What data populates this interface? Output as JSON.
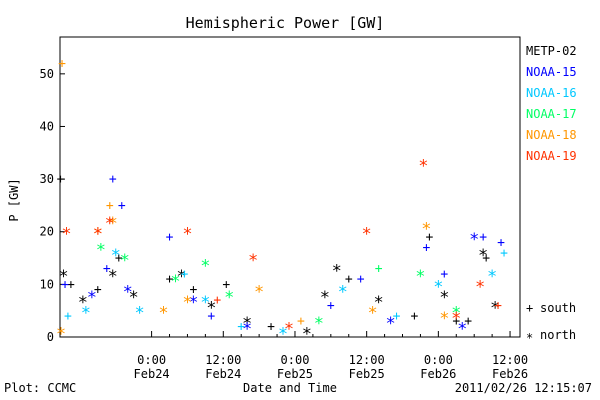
{
  "chart_data": {
    "type": "scatter",
    "title": "Hemispheric Power [GW]",
    "ylabel": "P [GW]",
    "xlabel": "Date and Time",
    "ylim": [
      0,
      57
    ],
    "yticks": [
      0,
      10,
      20,
      30,
      40,
      50
    ],
    "xlim": [
      "2011-02-23T08:40",
      "2011-02-26T13:40"
    ],
    "xticks": [
      {
        "t": "2011-02-24T00:00",
        "l1": "0:00",
        "l2": "Feb24"
      },
      {
        "t": "2011-02-24T12:00",
        "l1": "12:00",
        "l2": "Feb24"
      },
      {
        "t": "2011-02-25T00:00",
        "l1": "0:00",
        "l2": "Feb25"
      },
      {
        "t": "2011-02-25T12:00",
        "l1": "12:00",
        "l2": "Feb25"
      },
      {
        "t": "2011-02-26T00:00",
        "l1": "0:00",
        "l2": "Feb26"
      },
      {
        "t": "2011-02-26T12:00",
        "l1": "12:00",
        "l2": "Feb26"
      }
    ],
    "marker_legend": [
      {
        "marker": "+",
        "label": "south"
      },
      {
        "marker": "*",
        "label": "north"
      }
    ],
    "legend_position": "right",
    "grid": false,
    "series": [
      {
        "name": "METP-02",
        "color": "#000000",
        "points": [
          {
            "t": "2011-02-23T08:45",
            "y": 30,
            "m": "+"
          },
          {
            "t": "2011-02-23T09:15",
            "y": 12,
            "m": "*"
          },
          {
            "t": "2011-02-23T10:30",
            "y": 10,
            "m": "+"
          },
          {
            "t": "2011-02-23T12:30",
            "y": 7,
            "m": "*"
          },
          {
            "t": "2011-02-23T15:00",
            "y": 9,
            "m": "+"
          },
          {
            "t": "2011-02-23T17:30",
            "y": 12,
            "m": "*"
          },
          {
            "t": "2011-02-23T18:30",
            "y": 15,
            "m": "+"
          },
          {
            "t": "2011-02-23T21:00",
            "y": 8,
            "m": "*"
          },
          {
            "t": "2011-02-24T03:00",
            "y": 11,
            "m": "+"
          },
          {
            "t": "2011-02-24T05:00",
            "y": 12,
            "m": "*"
          },
          {
            "t": "2011-02-24T07:00",
            "y": 9,
            "m": "+"
          },
          {
            "t": "2011-02-24T10:00",
            "y": 6,
            "m": "*"
          },
          {
            "t": "2011-02-24T12:30",
            "y": 10,
            "m": "+"
          },
          {
            "t": "2011-02-24T16:00",
            "y": 3,
            "m": "*"
          },
          {
            "t": "2011-02-24T20:00",
            "y": 2,
            "m": "+"
          },
          {
            "t": "2011-02-25T02:00",
            "y": 1,
            "m": "*"
          },
          {
            "t": "2011-02-25T05:00",
            "y": 8,
            "m": "*"
          },
          {
            "t": "2011-02-25T07:00",
            "y": 13,
            "m": "*"
          },
          {
            "t": "2011-02-25T09:00",
            "y": 11,
            "m": "+"
          },
          {
            "t": "2011-02-25T14:00",
            "y": 7,
            "m": "*"
          },
          {
            "t": "2011-02-25T20:00",
            "y": 4,
            "m": "+"
          },
          {
            "t": "2011-02-25T22:30",
            "y": 19,
            "m": "+"
          },
          {
            "t": "2011-02-26T01:00",
            "y": 8,
            "m": "*"
          },
          {
            "t": "2011-02-26T03:00",
            "y": 3,
            "m": "+"
          },
          {
            "t": "2011-02-26T05:00",
            "y": 3,
            "m": "+"
          },
          {
            "t": "2011-02-26T07:30",
            "y": 16,
            "m": "*"
          },
          {
            "t": "2011-02-26T08:00",
            "y": 15,
            "m": "+"
          },
          {
            "t": "2011-02-26T09:30",
            "y": 6,
            "m": "*"
          }
        ]
      },
      {
        "name": "NOAA-15",
        "color": "#0000ff",
        "points": [
          {
            "t": "2011-02-23T09:30",
            "y": 10,
            "m": "+"
          },
          {
            "t": "2011-02-23T14:00",
            "y": 8,
            "m": "*"
          },
          {
            "t": "2011-02-23T16:30",
            "y": 13,
            "m": "+"
          },
          {
            "t": "2011-02-23T17:30",
            "y": 30,
            "m": "+"
          },
          {
            "t": "2011-02-23T19:00",
            "y": 25,
            "m": "+"
          },
          {
            "t": "2011-02-23T20:00",
            "y": 9,
            "m": "*"
          },
          {
            "t": "2011-02-24T03:00",
            "y": 19,
            "m": "+"
          },
          {
            "t": "2011-02-24T07:00",
            "y": 7,
            "m": "*"
          },
          {
            "t": "2011-02-24T10:00",
            "y": 4,
            "m": "+"
          },
          {
            "t": "2011-02-24T16:00",
            "y": 2,
            "m": "*"
          },
          {
            "t": "2011-02-25T06:00",
            "y": 6,
            "m": "+"
          },
          {
            "t": "2011-02-25T11:00",
            "y": 11,
            "m": "+"
          },
          {
            "t": "2011-02-25T16:00",
            "y": 3,
            "m": "*"
          },
          {
            "t": "2011-02-25T22:00",
            "y": 17,
            "m": "+"
          },
          {
            "t": "2011-02-26T01:00",
            "y": 12,
            "m": "+"
          },
          {
            "t": "2011-02-26T04:00",
            "y": 2,
            "m": "*"
          },
          {
            "t": "2011-02-26T06:00",
            "y": 19,
            "m": "*"
          },
          {
            "t": "2011-02-26T07:30",
            "y": 19,
            "m": "+"
          },
          {
            "t": "2011-02-26T10:30",
            "y": 18,
            "m": "+"
          }
        ]
      },
      {
        "name": "NOAA-16",
        "color": "#00c8ff",
        "points": [
          {
            "t": "2011-02-23T10:00",
            "y": 4,
            "m": "+"
          },
          {
            "t": "2011-02-23T13:00",
            "y": 5,
            "m": "*"
          },
          {
            "t": "2011-02-23T18:00",
            "y": 16,
            "m": "*"
          },
          {
            "t": "2011-02-23T22:00",
            "y": 5,
            "m": "*"
          },
          {
            "t": "2011-02-24T05:30",
            "y": 12,
            "m": "+"
          },
          {
            "t": "2011-02-24T09:00",
            "y": 7,
            "m": "*"
          },
          {
            "t": "2011-02-24T15:00",
            "y": 2,
            "m": "+"
          },
          {
            "t": "2011-02-24T22:00",
            "y": 1,
            "m": "*"
          },
          {
            "t": "2011-02-25T08:00",
            "y": 9,
            "m": "*"
          },
          {
            "t": "2011-02-25T17:00",
            "y": 4,
            "m": "+"
          },
          {
            "t": "2011-02-26T00:00",
            "y": 10,
            "m": "*"
          },
          {
            "t": "2011-02-26T09:00",
            "y": 12,
            "m": "*"
          },
          {
            "t": "2011-02-26T11:00",
            "y": 16,
            "m": "+"
          }
        ]
      },
      {
        "name": "NOAA-17",
        "color": "#00ff64",
        "points": [
          {
            "t": "2011-02-23T15:30",
            "y": 17,
            "m": "*"
          },
          {
            "t": "2011-02-23T19:30",
            "y": 15,
            "m": "*"
          },
          {
            "t": "2011-02-24T04:00",
            "y": 11,
            "m": "*"
          },
          {
            "t": "2011-02-24T09:00",
            "y": 14,
            "m": "*"
          },
          {
            "t": "2011-02-24T13:00",
            "y": 8,
            "m": "*"
          },
          {
            "t": "2011-02-25T04:00",
            "y": 3,
            "m": "*"
          },
          {
            "t": "2011-02-25T14:00",
            "y": 13,
            "m": "+"
          },
          {
            "t": "2011-02-25T21:00",
            "y": 12,
            "m": "*"
          },
          {
            "t": "2011-02-26T03:00",
            "y": 5,
            "m": "*"
          }
        ]
      },
      {
        "name": "NOAA-18",
        "color": "#ff9600",
        "points": [
          {
            "t": "2011-02-23T09:00",
            "y": 52,
            "m": "+"
          },
          {
            "t": "2011-02-23T08:50",
            "y": 1,
            "m": "*"
          },
          {
            "t": "2011-02-23T15:00",
            "y": 20,
            "m": "*"
          },
          {
            "t": "2011-02-23T17:00",
            "y": 25,
            "m": "+"
          },
          {
            "t": "2011-02-23T17:30",
            "y": 22,
            "m": "*"
          },
          {
            "t": "2011-02-24T02:00",
            "y": 5,
            "m": "*"
          },
          {
            "t": "2011-02-24T06:00",
            "y": 7,
            "m": "*"
          },
          {
            "t": "2011-02-24T18:00",
            "y": 9,
            "m": "*"
          },
          {
            "t": "2011-02-25T01:00",
            "y": 3,
            "m": "+"
          },
          {
            "t": "2011-02-25T13:00",
            "y": 5,
            "m": "*"
          },
          {
            "t": "2011-02-25T22:00",
            "y": 21,
            "m": "*"
          },
          {
            "t": "2011-02-26T01:00",
            "y": 4,
            "m": "*"
          }
        ]
      },
      {
        "name": "NOAA-19",
        "color": "#ff3200",
        "points": [
          {
            "t": "2011-02-23T09:45",
            "y": 20,
            "m": "*"
          },
          {
            "t": "2011-02-23T15:00",
            "y": 20,
            "m": "*"
          },
          {
            "t": "2011-02-23T17:00",
            "y": 22,
            "m": "*"
          },
          {
            "t": "2011-02-24T06:00",
            "y": 20,
            "m": "*"
          },
          {
            "t": "2011-02-24T11:00",
            "y": 7,
            "m": "+"
          },
          {
            "t": "2011-02-24T17:00",
            "y": 15,
            "m": "*"
          },
          {
            "t": "2011-02-24T23:00",
            "y": 2,
            "m": "*"
          },
          {
            "t": "2011-02-25T12:00",
            "y": 20,
            "m": "*"
          },
          {
            "t": "2011-02-25T21:30",
            "y": 33,
            "m": "*"
          },
          {
            "t": "2011-02-26T03:00",
            "y": 4,
            "m": "*"
          },
          {
            "t": "2011-02-26T07:00",
            "y": 10,
            "m": "*"
          },
          {
            "t": "2011-02-26T10:00",
            "y": 6,
            "m": "+"
          }
        ]
      }
    ]
  },
  "footer": {
    "left": "Plot: CCMC",
    "center": "Date and Time",
    "right": "2011/02/26 12:15:07"
  }
}
